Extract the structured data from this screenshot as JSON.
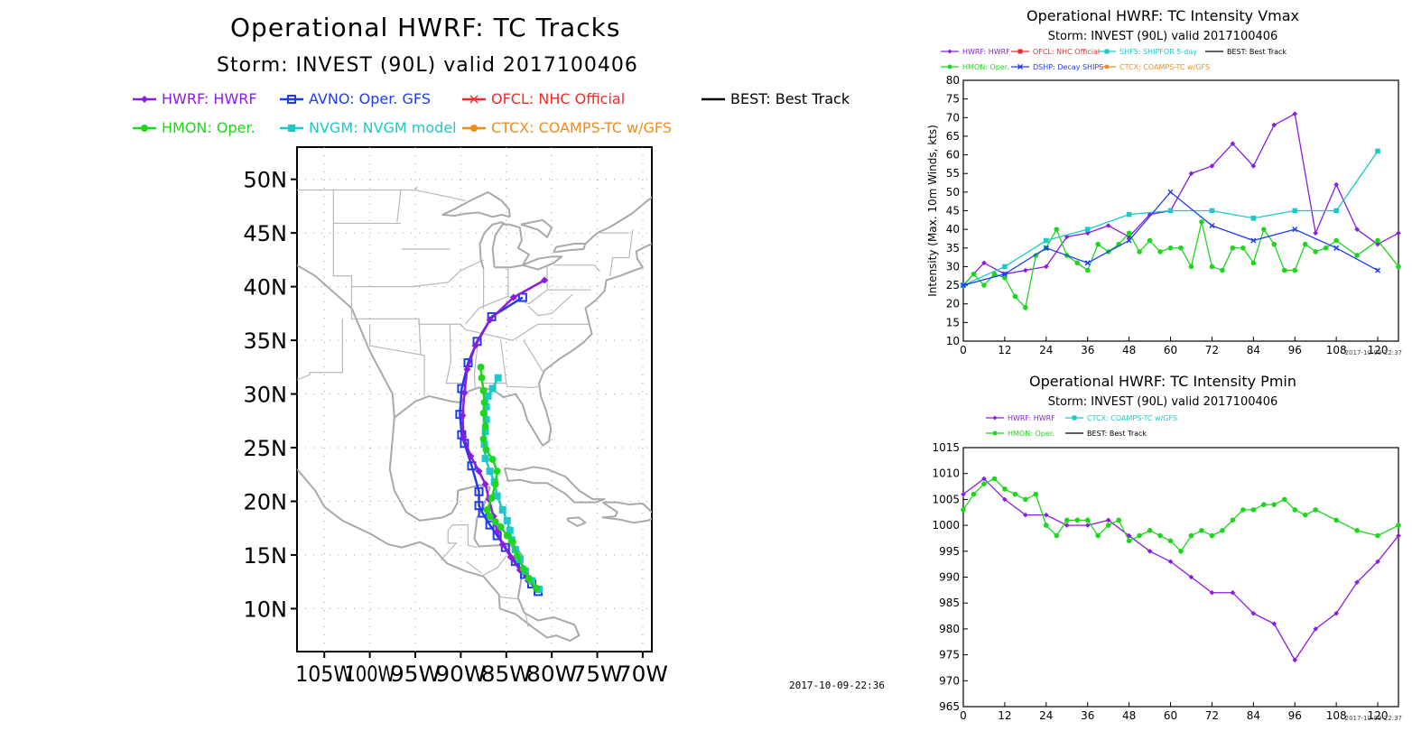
{
  "tracks_panel": {
    "title": "Operational HWRF: TC Tracks",
    "subtitle": "Storm: INVEST (90L) valid 2017100406",
    "timestamp": "2017-10-09-22:36",
    "legend": [
      {
        "id": "HWRF",
        "label": "HWRF: HWRF",
        "color": "#8a1ce0",
        "marker": "diamond"
      },
      {
        "id": "AVNO",
        "label": "AVNO: Oper. GFS",
        "color": "#1f3cf0",
        "marker": "square-open"
      },
      {
        "id": "OFCL",
        "label": "OFCL: NHC Official",
        "color": "#f02a2a",
        "marker": "x"
      },
      {
        "id": "BEST",
        "label": "BEST: Best Track",
        "color": "#000000",
        "marker": "none"
      },
      {
        "id": "HMON",
        "label": "HMON: Oper.",
        "color": "#1ed61e",
        "marker": "circle"
      },
      {
        "id": "NVGM",
        "label": "NVGM: NVGM model",
        "color": "#1ec8c8",
        "marker": "square"
      },
      {
        "id": "CTCX",
        "label": "CTCX: COAMPS-TC w/GFS",
        "color": "#f08c1e",
        "marker": "circle"
      }
    ],
    "lat_ticks": [
      "10N",
      "15N",
      "20N",
      "25N",
      "30N",
      "35N",
      "40N",
      "45N",
      "50N"
    ],
    "lon_ticks": [
      "105W",
      "100W",
      "95W",
      "90W",
      "85W",
      "80W",
      "75W",
      "70W"
    ]
  },
  "chart_data": [
    {
      "type": "map-track",
      "title": "Operational HWRF: TC Tracks",
      "subtitle": "Storm: INVEST (90L) valid 2017100406",
      "xlim": [
        -108,
        -69
      ],
      "ylim": [
        6,
        53
      ],
      "series": [
        {
          "name": "HWRF: HWRF",
          "color": "#8a1ce0",
          "points": [
            [
              -81.6,
              11.8
            ],
            [
              -82.6,
              12.6
            ],
            [
              -83.5,
              13.6
            ],
            [
              -84.5,
              14.8
            ],
            [
              -85.4,
              16.0
            ],
            [
              -86.0,
              17.2
            ],
            [
              -86.4,
              18.6
            ],
            [
              -86.9,
              20.2
            ],
            [
              -87.3,
              21.6
            ],
            [
              -88.0,
              22.8
            ],
            [
              -88.9,
              24.2
            ],
            [
              -89.7,
              26.0
            ],
            [
              -89.8,
              28.0
            ],
            [
              -89.6,
              30.1
            ],
            [
              -89.3,
              32.3
            ],
            [
              -88.4,
              34.5
            ],
            [
              -86.8,
              36.9
            ],
            [
              -84.2,
              39.0
            ],
            [
              -80.8,
              40.6
            ]
          ]
        },
        {
          "name": "AVNO: Oper. GFS",
          "color": "#1f3cf0",
          "points": [
            [
              -81.5,
              11.6
            ],
            [
              -82.2,
              12.3
            ],
            [
              -83.0,
              13.2
            ],
            [
              -84.0,
              14.4
            ],
            [
              -85.1,
              15.7
            ],
            [
              -86.0,
              16.8
            ],
            [
              -86.8,
              17.8
            ],
            [
              -87.6,
              18.9
            ],
            [
              -88.0,
              19.6
            ],
            [
              -88.0,
              20.9
            ],
            [
              -88.8,
              23.3
            ],
            [
              -89.6,
              25.4
            ],
            [
              -89.9,
              26.2
            ],
            [
              -90.1,
              28.1
            ],
            [
              -89.9,
              30.5
            ],
            [
              -89.2,
              32.9
            ],
            [
              -88.2,
              34.9
            ],
            [
              -86.6,
              37.2
            ],
            [
              -83.2,
              39.0
            ]
          ]
        },
        {
          "name": "HMON: Oper.",
          "color": "#1ed61e",
          "points": [
            [
              -81.7,
              11.9
            ],
            [
              -82.5,
              12.8
            ],
            [
              -83.1,
              13.7
            ],
            [
              -83.8,
              14.9
            ],
            [
              -84.3,
              16.2
            ],
            [
              -84.9,
              16.8
            ],
            [
              -85.6,
              17.6
            ],
            [
              -86.2,
              18.1
            ],
            [
              -86.8,
              18.6
            ],
            [
              -87.1,
              19.2
            ],
            [
              -86.6,
              20.3
            ],
            [
              -86.2,
              21.6
            ],
            [
              -86.0,
              22.8
            ],
            [
              -86.5,
              23.9
            ],
            [
              -87.2,
              24.8
            ],
            [
              -87.5,
              25.8
            ],
            [
              -87.3,
              27.0
            ],
            [
              -87.5,
              28.2
            ],
            [
              -87.4,
              29.2
            ],
            [
              -87.5,
              30.3
            ],
            [
              -87.7,
              31.5
            ],
            [
              -87.8,
              32.5
            ]
          ]
        },
        {
          "name": "NVGM: NVGM model",
          "color": "#1ec8c8",
          "points": [
            [
              -81.4,
              11.8
            ],
            [
              -82.2,
              12.6
            ],
            [
              -82.9,
              13.5
            ],
            [
              -83.5,
              14.6
            ],
            [
              -84.0,
              15.5
            ],
            [
              -84.4,
              16.4
            ],
            [
              -84.6,
              17.3
            ],
            [
              -84.9,
              18.2
            ],
            [
              -85.4,
              19.2
            ],
            [
              -86.0,
              20.5
            ],
            [
              -86.3,
              21.8
            ],
            [
              -86.8,
              22.8
            ],
            [
              -87.3,
              24.0
            ],
            [
              -87.4,
              25.3
            ],
            [
              -87.3,
              26.5
            ],
            [
              -87.2,
              27.6
            ],
            [
              -87.2,
              28.8
            ],
            [
              -87.0,
              29.8
            ],
            [
              -86.5,
              30.5
            ],
            [
              -85.9,
              31.5
            ]
          ]
        }
      ]
    },
    {
      "type": "line",
      "title": "Operational HWRF: TC Intensity Vmax",
      "subtitle": "Storm: INVEST (90L) valid 2017100406",
      "ylabel": "Intensity (Max. 10m Winds, kts)",
      "xlim": [
        0,
        126
      ],
      "ylim": [
        10,
        80
      ],
      "xticks": [
        0,
        12,
        24,
        36,
        48,
        60,
        72,
        84,
        96,
        108,
        120
      ],
      "yticks": [
        10,
        15,
        20,
        25,
        30,
        35,
        40,
        45,
        50,
        55,
        60,
        65,
        70,
        75,
        80
      ],
      "timestamp": "2017-10-09-22:37",
      "legend": [
        {
          "label": "HWRF: HWRF",
          "color": "#8a1ce0",
          "marker": "diamond"
        },
        {
          "label": "OFCL: NHC Official",
          "color": "#f02a2a",
          "marker": "square"
        },
        {
          "label": "SHF5: SHIPFOR 5-day",
          "color": "#1ec8c8",
          "marker": "square"
        },
        {
          "label": "BEST: Best Track",
          "color": "#000000",
          "marker": "none"
        },
        {
          "label": "HMON: Oper.",
          "color": "#1ed61e",
          "marker": "circle"
        },
        {
          "label": "DSHP: Decay SHIPS",
          "color": "#1f3cf0",
          "marker": "x"
        },
        {
          "label": "CTCX: COAMPS-TC w/GFS",
          "color": "#f08c1e",
          "marker": "circle"
        }
      ],
      "series": [
        {
          "name": "HWRF: HWRF",
          "color": "#8a1ce0",
          "marker": "diamond",
          "x": [
            0,
            6,
            12,
            18,
            24,
            30,
            36,
            42,
            48,
            54,
            60,
            66,
            72,
            78,
            84,
            90,
            96,
            102,
            108,
            114,
            120,
            126
          ],
          "y": [
            25,
            31,
            28,
            29,
            30,
            38,
            39,
            41,
            38,
            44,
            45,
            55,
            57,
            63,
            57,
            68,
            71,
            39,
            52,
            40,
            36,
            39
          ]
        },
        {
          "name": "HMON: Oper.",
          "color": "#1ed61e",
          "marker": "circle",
          "x": [
            0,
            3,
            6,
            9,
            12,
            15,
            18,
            21,
            24,
            27,
            30,
            33,
            36,
            39,
            42,
            45,
            48,
            51,
            54,
            57,
            60,
            63,
            66,
            69,
            72,
            75,
            78,
            81,
            84,
            87,
            90,
            93,
            96,
            99,
            102,
            105,
            108,
            114,
            120,
            126
          ],
          "y": [
            25,
            28,
            25,
            28,
            27,
            22,
            19,
            33,
            35,
            40,
            33,
            31,
            29,
            36,
            34,
            36,
            39,
            34,
            37,
            34,
            35,
            35,
            30,
            42,
            30,
            29,
            35,
            35,
            31,
            40,
            36,
            29,
            29,
            36,
            34,
            35,
            37,
            33,
            37,
            30
          ]
        },
        {
          "name": "SHF5: SHIPFOR 5-day",
          "color": "#1ec8c8",
          "marker": "square",
          "x": [
            0,
            12,
            24,
            36,
            48,
            60,
            72,
            84,
            96,
            108,
            120
          ],
          "y": [
            25,
            30,
            37,
            40,
            44,
            45,
            45,
            43,
            45,
            45,
            61
          ]
        },
        {
          "name": "DSHP: Decay SHIPS",
          "color": "#1f3cf0",
          "marker": "x",
          "x": [
            0,
            12,
            24,
            36,
            48,
            60,
            72,
            84,
            96,
            108,
            120
          ],
          "y": [
            25,
            28,
            35,
            31,
            37,
            50,
            41,
            37,
            40,
            35,
            29
          ]
        }
      ]
    },
    {
      "type": "line",
      "title": "Operational HWRF: TC Intensity Pmin",
      "subtitle": "Storm: INVEST (90L) valid 2017100406",
      "xlim": [
        0,
        126
      ],
      "ylim": [
        965,
        1015
      ],
      "xticks": [
        0,
        12,
        24,
        36,
        48,
        60,
        72,
        84,
        96,
        108,
        120
      ],
      "yticks": [
        965,
        970,
        975,
        980,
        985,
        990,
        995,
        1000,
        1005,
        1010,
        1015
      ],
      "timestamp": "2017-10-09-22:37",
      "legend": [
        {
          "label": "HWRF: HWRF",
          "color": "#8a1ce0",
          "marker": "diamond"
        },
        {
          "label": "CTCX: COAMPS-TC w/GFS",
          "color": "#1ec8c8",
          "marker": "square"
        },
        {
          "label": "HMON: Oper.",
          "color": "#1ed61e",
          "marker": "circle"
        },
        {
          "label": "BEST: Best Track",
          "color": "#000000",
          "marker": "none"
        }
      ],
      "series": [
        {
          "name": "HWRF: HWRF",
          "color": "#8a1ce0",
          "marker": "diamond",
          "x": [
            0,
            6,
            12,
            18,
            24,
            30,
            36,
            42,
            48,
            54,
            60,
            66,
            72,
            78,
            84,
            90,
            96,
            102,
            108,
            114,
            120,
            126
          ],
          "y": [
            1006,
            1009,
            1005,
            1002,
            1002,
            1000,
            1000,
            1001,
            998,
            995,
            993,
            990,
            987,
            987,
            983,
            981,
            974,
            980,
            983,
            989,
            993,
            998
          ]
        },
        {
          "name": "HMON: Oper.",
          "color": "#1ed61e",
          "marker": "circle",
          "x": [
            0,
            3,
            6,
            9,
            12,
            15,
            18,
            21,
            24,
            27,
            30,
            33,
            36,
            39,
            42,
            45,
            48,
            51,
            54,
            57,
            60,
            63,
            66,
            69,
            72,
            75,
            78,
            81,
            84,
            87,
            90,
            93,
            96,
            99,
            102,
            108,
            114,
            120,
            126
          ],
          "y": [
            1003,
            1006,
            1008,
            1009,
            1007,
            1006,
            1005,
            1006,
            1000,
            998,
            1001,
            1001,
            1001,
            998,
            1000,
            1001,
            997,
            998,
            999,
            998,
            997,
            995,
            998,
            999,
            998,
            999,
            1001,
            1003,
            1003,
            1004,
            1004,
            1005,
            1003,
            1002,
            1003,
            1001,
            999,
            998,
            1000
          ]
        }
      ]
    }
  ]
}
